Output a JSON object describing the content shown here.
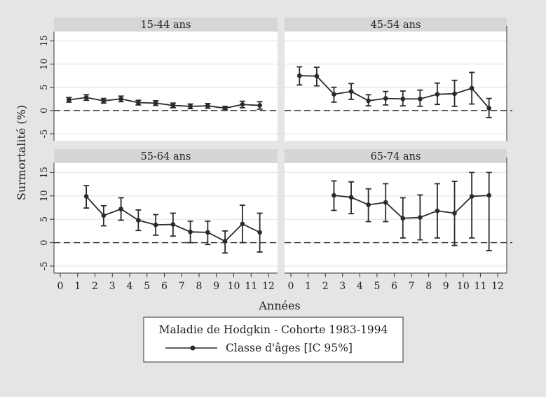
{
  "chart_data": {
    "type": "line",
    "ylabel": "Surmortalité (%)",
    "xlabel": "Années",
    "xlim": [
      0,
      12
    ],
    "ylim": [
      -6.5,
      17
    ],
    "xticks": [
      0,
      1,
      2,
      3,
      4,
      5,
      6,
      7,
      8,
      9,
      10,
      11,
      12
    ],
    "yticks": [
      -5,
      0,
      5,
      10,
      15
    ],
    "grid": true,
    "reference_line": 0,
    "legend": {
      "title": "Maladie de Hodgkin - Cohorte 1983-1994",
      "entry": "Classe d'âges [IC 95%]",
      "placement": "bottom"
    },
    "colors": {
      "series": "#2a2a2a",
      "header": "#d6d6d6",
      "background": "#e5e5e5",
      "plot": "#ffffff"
    },
    "panels": [
      {
        "title": "15-44 ans",
        "x": [
          0.5,
          1.5,
          2.5,
          3.5,
          4.5,
          5.5,
          6.5,
          7.5,
          8.5,
          9.5,
          10.5,
          11.5
        ],
        "y": [
          2.3,
          2.8,
          2.1,
          2.5,
          1.7,
          1.6,
          1.1,
          0.9,
          1.0,
          0.5,
          1.3,
          1.1
        ],
        "lower": [
          1.8,
          2.2,
          1.6,
          1.9,
          1.2,
          1.1,
          0.6,
          0.4,
          0.5,
          0.1,
          0.6,
          0.3
        ],
        "upper": [
          2.8,
          3.4,
          2.6,
          3.1,
          2.2,
          2.1,
          1.6,
          1.4,
          1.5,
          0.9,
          2.0,
          1.9
        ]
      },
      {
        "title": "45-54 ans",
        "x": [
          0.5,
          1.5,
          2.5,
          3.5,
          4.5,
          5.5,
          6.5,
          7.5,
          8.5,
          9.5,
          10.5,
          11.5
        ],
        "y": [
          7.5,
          7.4,
          3.5,
          4.1,
          2.1,
          2.6,
          2.5,
          2.5,
          3.5,
          3.6,
          4.8,
          0.5
        ],
        "lower": [
          5.5,
          5.3,
          1.8,
          2.4,
          1.0,
          1.2,
          1.0,
          0.9,
          1.3,
          0.9,
          1.4,
          -1.5
        ],
        "upper": [
          9.4,
          9.3,
          5.0,
          5.8,
          3.4,
          4.1,
          4.2,
          4.4,
          5.9,
          6.5,
          8.2,
          2.6
        ]
      },
      {
        "title": "55-64 ans",
        "x": [
          1.5,
          2.5,
          3.5,
          4.5,
          5.5,
          6.5,
          7.5,
          8.5,
          9.5,
          10.5,
          11.5
        ],
        "y": [
          9.9,
          5.8,
          7.2,
          4.8,
          3.8,
          3.9,
          2.3,
          2.2,
          0.3,
          4.0,
          2.2
        ],
        "lower": [
          7.4,
          3.6,
          4.8,
          2.6,
          1.6,
          1.4,
          0.0,
          -0.4,
          -2.2,
          0.0,
          -2.0
        ],
        "upper": [
          12.2,
          7.9,
          9.6,
          7.0,
          6.0,
          6.3,
          4.6,
          4.6,
          2.5,
          8.0,
          6.3
        ]
      },
      {
        "title": "65-74 ans",
        "x": [
          2.5,
          3.5,
          4.5,
          5.5,
          6.5,
          7.5,
          8.5,
          9.5,
          10.5,
          11.5
        ],
        "y": [
          10.1,
          9.7,
          8.1,
          8.6,
          5.2,
          5.4,
          6.8,
          6.3,
          9.9,
          10.1
        ],
        "lower": [
          6.9,
          6.2,
          4.5,
          4.5,
          1.0,
          0.6,
          1.0,
          -0.6,
          1.0,
          -1.7
        ],
        "upper": [
          13.2,
          13.0,
          11.5,
          12.6,
          9.6,
          10.2,
          12.6,
          13.1,
          15.0,
          15.0
        ]
      }
    ]
  }
}
